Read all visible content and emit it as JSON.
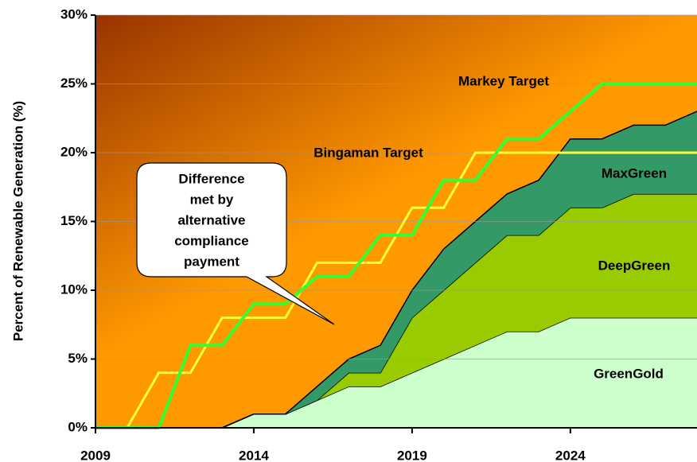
{
  "chart_data": {
    "type": "stacked_area_with_lines",
    "y_axis_label": "Percent of Renewable Generation (%)",
    "x": [
      2009,
      2010,
      2011,
      2012,
      2013,
      2014,
      2015,
      2016,
      2017,
      2018,
      2019,
      2020,
      2021,
      2022,
      2023,
      2024,
      2025,
      2026,
      2027,
      2028
    ],
    "series": [
      {
        "name": "GreenGold",
        "color": "#ccffcc",
        "values": [
          0,
          0,
          0,
          0,
          0,
          1,
          1,
          2,
          3,
          3,
          4,
          5,
          6,
          7,
          7,
          8,
          8,
          8,
          8,
          8
        ]
      },
      {
        "name": "DeepGreen",
        "color": "#99cc00",
        "values": [
          0,
          0,
          0,
          0,
          0,
          0,
          0,
          0,
          1,
          1,
          4,
          5,
          6,
          7,
          7,
          8,
          8,
          9,
          9,
          9
        ]
      },
      {
        "name": "MaxGreen",
        "color": "#339966",
        "values": [
          0,
          0,
          0,
          0,
          0,
          0,
          0,
          1,
          1,
          2,
          2,
          3,
          3,
          3,
          4,
          5,
          5,
          5,
          5,
          6
        ]
      }
    ],
    "lines": [
      {
        "name": "Bingaman Target",
        "color": "#ffff33",
        "values": [
          0,
          0,
          4,
          4,
          8,
          8,
          8,
          12,
          12,
          12,
          16,
          16,
          20,
          20,
          20,
          20,
          20,
          20,
          20,
          20
        ]
      },
      {
        "name": "Markey Target",
        "color": "#33ff33",
        "values": [
          0,
          0,
          0,
          6,
          6,
          9,
          9,
          11,
          11,
          14,
          14,
          18,
          18,
          21,
          21,
          23,
          25,
          25,
          25,
          25
        ]
      }
    ],
    "annotation_lines": [
      "Difference",
      "met by",
      "alternative",
      "compliance",
      "payment"
    ],
    "xlim": [
      2009,
      2028
    ],
    "xticks": [
      2009,
      2014,
      2019,
      2024
    ],
    "ylim": [
      0,
      30
    ],
    "yticks": [
      {
        "value": 0,
        "label": "0%"
      },
      {
        "value": 5,
        "label": "5%"
      },
      {
        "value": 10,
        "label": "10%"
      },
      {
        "value": 15,
        "label": "15%"
      },
      {
        "value": 20,
        "label": "20%"
      },
      {
        "value": 25,
        "label": "25%"
      },
      {
        "value": 30,
        "label": "30%"
      }
    ],
    "grid": true
  }
}
